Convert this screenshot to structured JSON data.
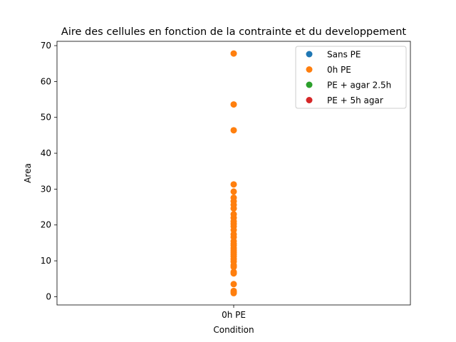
{
  "chart_data": {
    "type": "scatter",
    "title": "Aire des cellules en fonction de la contrainte et du developpement",
    "xlabel": "Condition",
    "ylabel": "Area",
    "categories": [
      "0h PE"
    ],
    "ylim": [
      -2.3,
      71.2
    ],
    "yticks": [
      0,
      10,
      20,
      30,
      40,
      50,
      60,
      70
    ],
    "grid": false,
    "legend_position": "top-right",
    "series": [
      {
        "name": "Sans PE",
        "color": "#1f77b4",
        "x": [],
        "y": []
      },
      {
        "name": "0h PE",
        "color": "#ff7f0e",
        "x": [
          "0h PE",
          "0h PE",
          "0h PE",
          "0h PE",
          "0h PE",
          "0h PE",
          "0h PE",
          "0h PE",
          "0h PE",
          "0h PE",
          "0h PE",
          "0h PE",
          "0h PE",
          "0h PE",
          "0h PE",
          "0h PE",
          "0h PE",
          "0h PE",
          "0h PE",
          "0h PE",
          "0h PE",
          "0h PE",
          "0h PE",
          "0h PE",
          "0h PE",
          "0h PE",
          "0h PE",
          "0h PE",
          "0h PE",
          "0h PE",
          "0h PE",
          "0h PE",
          "0h PE",
          "0h PE",
          "0h PE"
        ],
        "y": [
          67.8,
          53.6,
          46.4,
          31.3,
          29.3,
          27.6,
          26.6,
          25.6,
          24.6,
          23.0,
          22.0,
          21.0,
          20.3,
          19.6,
          18.6,
          17.4,
          16.6,
          15.5,
          14.8,
          14.3,
          13.6,
          13.0,
          12.4,
          11.8,
          11.2,
          10.5,
          9.8,
          8.8,
          8.3,
          6.9,
          6.5,
          3.5,
          1.6,
          1.3,
          1.0
        ]
      },
      {
        "name": "PE + agar 2.5h",
        "color": "#2ca02c",
        "x": [],
        "y": []
      },
      {
        "name": "PE + 5h agar",
        "color": "#d62728",
        "x": [],
        "y": []
      }
    ]
  }
}
